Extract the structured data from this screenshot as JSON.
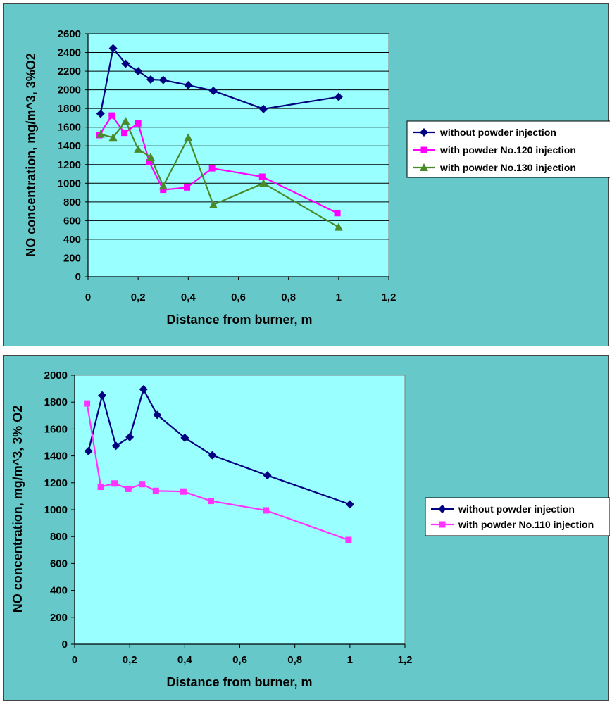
{
  "chart_data": [
    {
      "type": "line",
      "xlabel": "Distance from burner, m",
      "ylabel": "NO concentration, mg/m^3, 3%O2",
      "xlim": [
        0,
        1.2
      ],
      "ylim": [
        0,
        2600
      ],
      "x_ticks": [
        "0",
        "0,2",
        "0,4",
        "0,6",
        "0,8",
        "1",
        "1,2"
      ],
      "y_ticks": [
        "0",
        "200",
        "400",
        "600",
        "800",
        "1000",
        "1200",
        "1400",
        "1600",
        "1800",
        "2000",
        "2200",
        "2400",
        "2600"
      ],
      "grid": "horizontal",
      "legend_position": "right",
      "series": [
        {
          "name": "without powder injection",
          "color": "#000080",
          "marker": "diamond",
          "points": [
            [
              0.05,
              1745
            ],
            [
              0.1,
              2445
            ],
            [
              0.15,
              2280
            ],
            [
              0.2,
              2200
            ],
            [
              0.25,
              2110
            ],
            [
              0.3,
              2105
            ],
            [
              0.4,
              2050
            ],
            [
              0.5,
              1990
            ],
            [
              0.7,
              1795
            ],
            [
              1.0,
              1925
            ]
          ]
        },
        {
          "name": "with powder No.120 injection",
          "color": "#ff00ff",
          "marker": "square",
          "points": [
            [
              0.045,
              1515
            ],
            [
              0.095,
              1725
            ],
            [
              0.145,
              1540
            ],
            [
              0.2,
              1640
            ],
            [
              0.245,
              1225
            ],
            [
              0.3,
              930
            ],
            [
              0.395,
              955
            ],
            [
              0.495,
              1160
            ],
            [
              0.695,
              1070
            ],
            [
              0.995,
              680
            ]
          ]
        },
        {
          "name": "with powder No.130 injection",
          "color": "#4a8a2a",
          "marker": "triangle",
          "points": [
            [
              0.05,
              1525
            ],
            [
              0.1,
              1490
            ],
            [
              0.15,
              1665
            ],
            [
              0.2,
              1365
            ],
            [
              0.25,
              1280
            ],
            [
              0.3,
              970
            ],
            [
              0.4,
              1490
            ],
            [
              0.5,
              770
            ],
            [
              0.7,
              1000
            ],
            [
              1.0,
              530
            ]
          ]
        }
      ]
    },
    {
      "type": "line",
      "xlabel": "Distance from burner, m",
      "ylabel": "NO concentration, mg/m^3, 3% O2",
      "xlim": [
        0,
        1.2
      ],
      "ylim": [
        0,
        2000
      ],
      "x_ticks": [
        "0",
        "0,2",
        "0,4",
        "0,6",
        "0,8",
        "1",
        "1,2"
      ],
      "y_ticks": [
        "0",
        "200",
        "400",
        "600",
        "800",
        "1000",
        "1200",
        "1400",
        "1600",
        "1800",
        "2000"
      ],
      "grid": "none",
      "legend_position": "right",
      "series": [
        {
          "name": "without powder injection",
          "color": "#000080",
          "marker": "diamond",
          "points": [
            [
              0.05,
              1435
            ],
            [
              0.1,
              1850
            ],
            [
              0.15,
              1475
            ],
            [
              0.2,
              1540
            ],
            [
              0.25,
              1895
            ],
            [
              0.3,
              1705
            ],
            [
              0.4,
              1535
            ],
            [
              0.5,
              1405
            ],
            [
              0.7,
              1255
            ],
            [
              1.0,
              1040
            ]
          ]
        },
        {
          "name": "with powder No.110 injection",
          "color": "#ff33ff",
          "marker": "square",
          "points": [
            [
              0.045,
              1790
            ],
            [
              0.095,
              1170
            ],
            [
              0.145,
              1195
            ],
            [
              0.195,
              1155
            ],
            [
              0.245,
              1190
            ],
            [
              0.295,
              1140
            ],
            [
              0.395,
              1135
            ],
            [
              0.495,
              1065
            ],
            [
              0.695,
              995
            ],
            [
              0.995,
              775
            ]
          ]
        }
      ]
    }
  ]
}
